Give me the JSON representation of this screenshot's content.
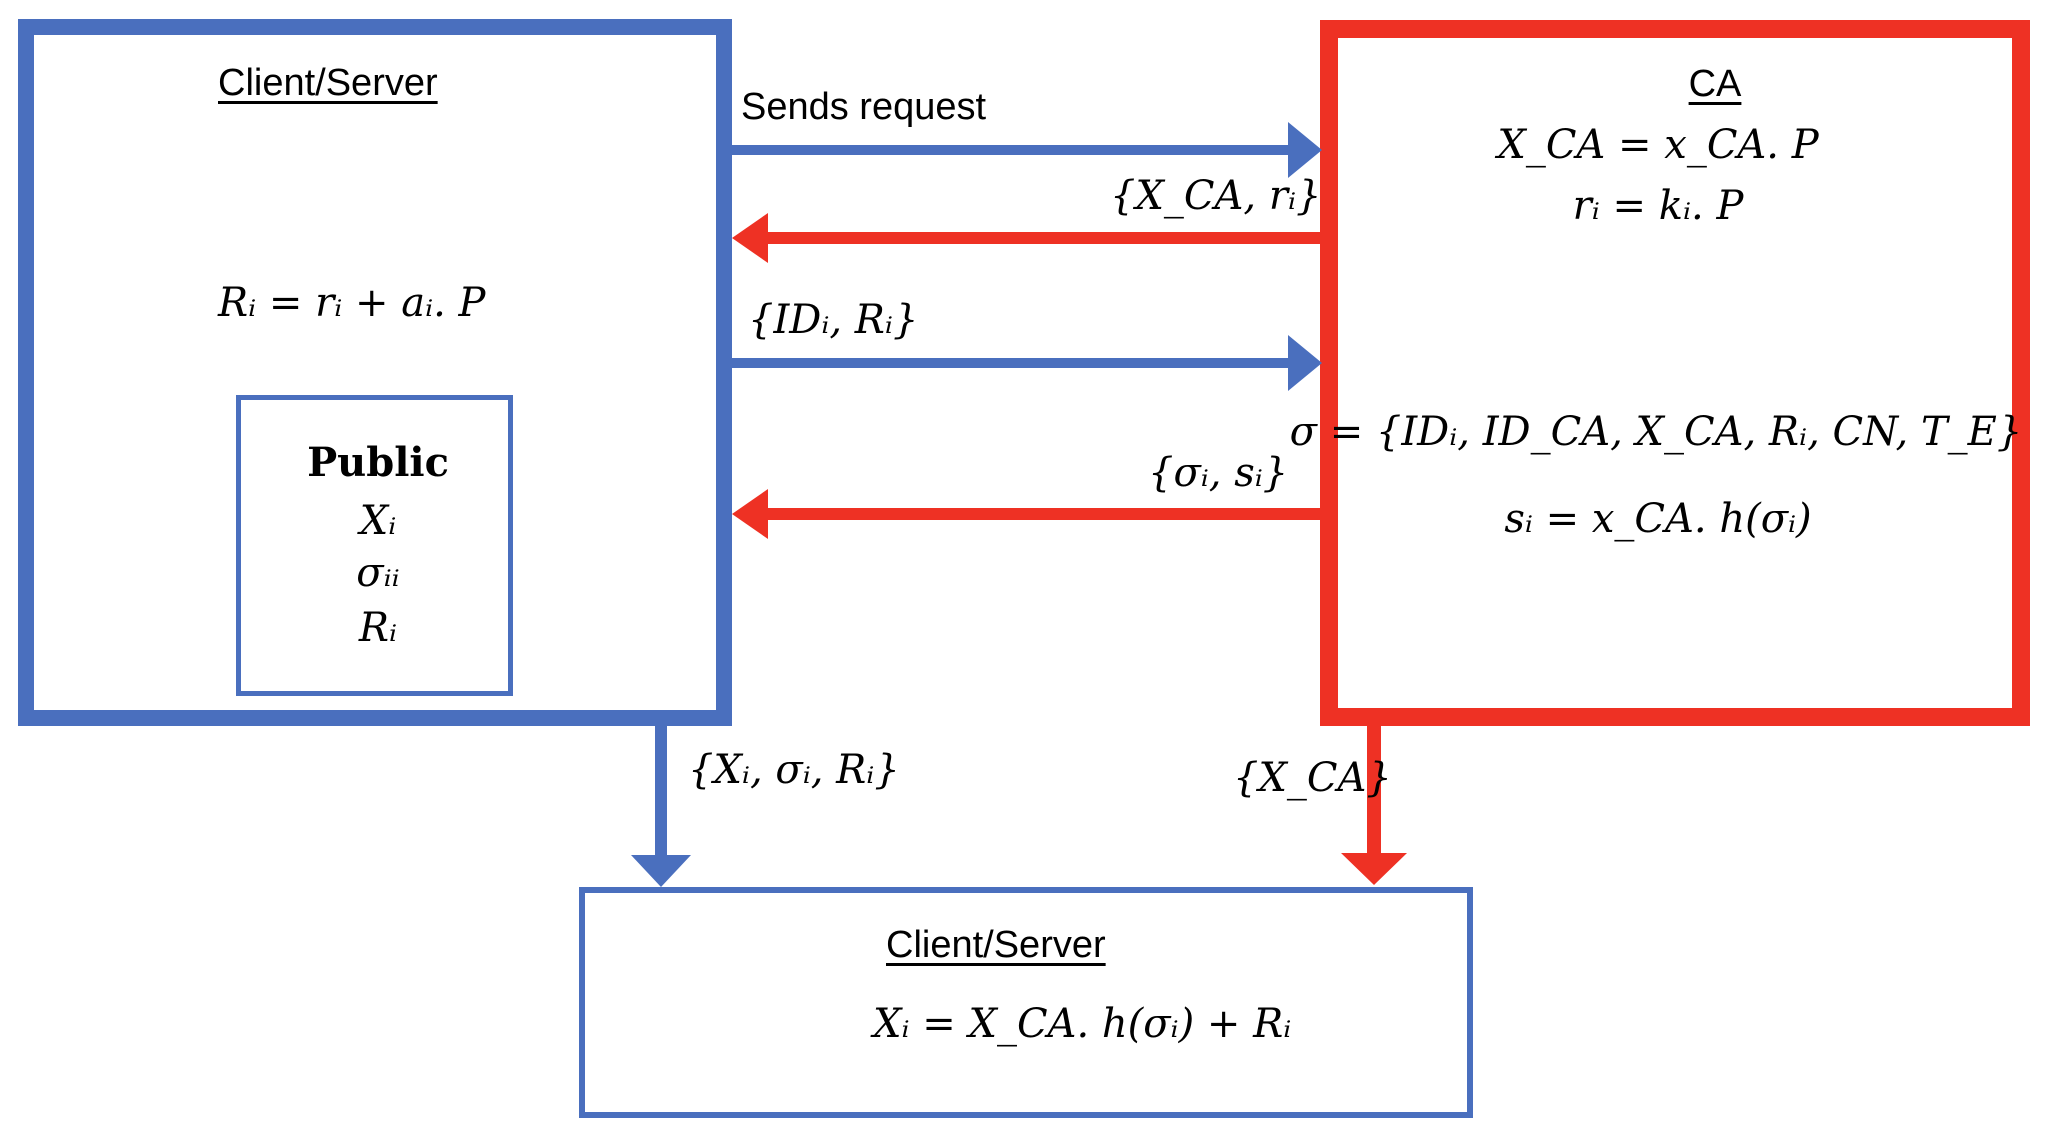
{
  "client_left": {
    "title": "Client/Server",
    "equation": "Rᵢ = rᵢ + aᵢ. P",
    "public_box": {
      "heading": "Public",
      "items": [
        "Xᵢ",
        "σᵢᵢ",
        "Rᵢ"
      ]
    }
  },
  "ca": {
    "title": "CA",
    "equations": [
      "X_CA = x_CA. P",
      "rᵢ = kᵢ. P",
      "σ = {IDᵢ, ID_CA, X_CA, Rᵢ, CN, T_E}",
      "sᵢ = x_CA. h(σᵢ)"
    ]
  },
  "client_bottom": {
    "title": "Client/Server",
    "equation": "Xᵢ = X_CA. h(σᵢ) + Rᵢ"
  },
  "messages": {
    "sends_request": "Sends request",
    "xca_ri": "{X_CA, rᵢ}",
    "idi_ri": "{IDᵢ, Rᵢ}",
    "sigma_si": "{σᵢ, sᵢ}",
    "xi_sigma_ri": "{Xᵢ, σᵢ, Rᵢ}",
    "xca": "{X_CA}"
  },
  "colors": {
    "client_blue": "#4a6fbe",
    "ca_red": "#ee3124"
  }
}
